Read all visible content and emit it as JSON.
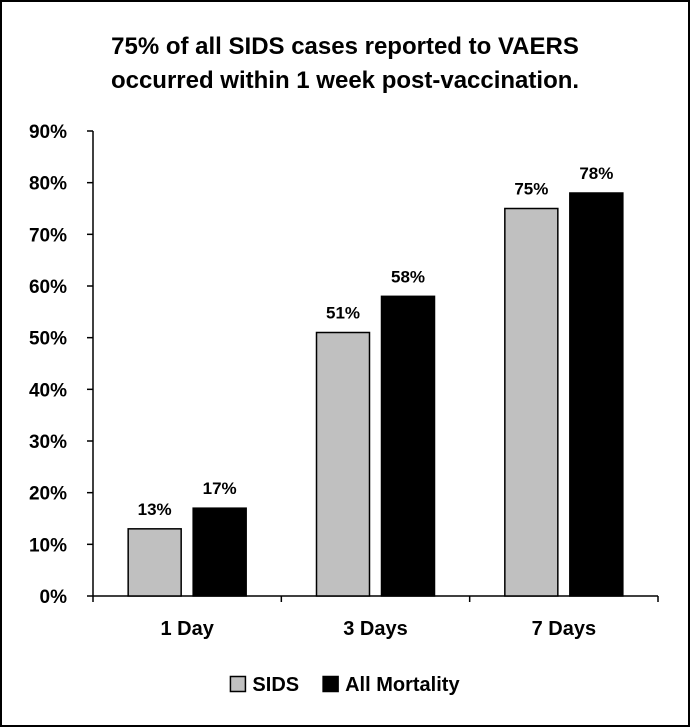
{
  "chart_data": {
    "type": "bar",
    "title_lines": [
      "75% of all SIDS cases reported to VAERS",
      "occurred within 1 week post-vaccination."
    ],
    "categories": [
      "1 Day",
      "3 Days",
      "7 Days"
    ],
    "series": [
      {
        "name": "SIDS",
        "values": [
          13,
          51,
          75
        ],
        "labels": [
          "13%",
          "51%",
          "75%"
        ],
        "color": "#c0c0c0"
      },
      {
        "name": "All Mortality",
        "values": [
          17,
          58,
          78
        ],
        "labels": [
          "17%",
          "58%",
          "78%"
        ],
        "color": "#000000"
      }
    ],
    "ylim": [
      0,
      90
    ],
    "yticks": [
      0,
      10,
      20,
      30,
      40,
      50,
      60,
      70,
      80,
      90
    ],
    "ytick_labels": [
      "0%",
      "10%",
      "20%",
      "30%",
      "40%",
      "50%",
      "60%",
      "70%",
      "80%",
      "90%"
    ],
    "grid": false,
    "legend_position": "bottom"
  }
}
